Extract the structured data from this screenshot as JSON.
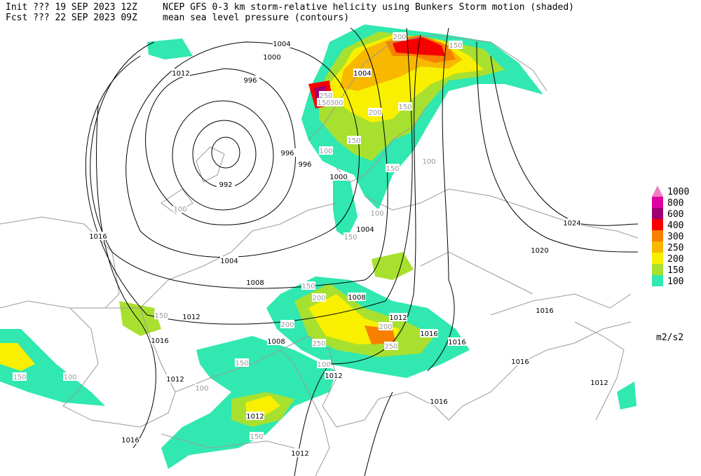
{
  "header": {
    "line1_left": "Init  ??? 19 SEP 2023 12Z",
    "line1_right": "NCEP GFS 0-3 km storm-relative helicity using Bunkers Storm motion (shaded)",
    "line2_left": "Fcst ??? 22 SEP 2023 09Z",
    "line2_right": "mean sea level pressure (contours)"
  },
  "legend": {
    "items": [
      {
        "label": "1000",
        "color": "#f080c0"
      },
      {
        "label": "800",
        "color": "#e000a0"
      },
      {
        "label": "600",
        "color": "#a00070"
      },
      {
        "label": "400",
        "color": "#f80000"
      },
      {
        "label": "300",
        "color": "#f88000"
      },
      {
        "label": "250",
        "color": "#f8b800"
      },
      {
        "label": "200",
        "color": "#f8f000"
      },
      {
        "label": "150",
        "color": "#a8e030"
      },
      {
        "label": "100",
        "color": "#30e8b0"
      }
    ],
    "units": "m2/s2"
  },
  "pressure_labels": [
    "1004",
    "1000",
    "1012",
    "996",
    "1004",
    "996",
    "996",
    "992",
    "1000",
    "1016",
    "1004",
    "1024",
    "1020",
    "1004",
    "1008",
    "1008",
    "1012",
    "1012",
    "1016",
    "1016",
    "1016",
    "1008",
    "1016",
    "1016",
    "1012",
    "1012",
    "1012",
    "1016",
    "1012",
    "1016",
    "1012"
  ],
  "helicity_labels": [
    "200",
    "150",
    "250",
    "300",
    "150",
    "200",
    "150",
    "100",
    "150",
    "100",
    "150",
    "100",
    "150",
    "200",
    "150",
    "200",
    "250",
    "150",
    "100",
    "150",
    "100",
    "200",
    "150",
    "250",
    "100",
    "150",
    "100"
  ]
}
